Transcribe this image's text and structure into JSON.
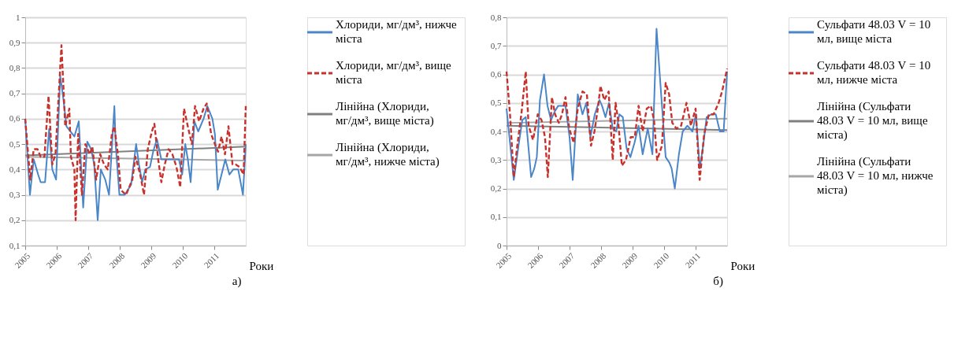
{
  "chart_data": [
    {
      "type": "line",
      "xlabel": "Роки",
      "xlim": [
        2005,
        2012
      ],
      "xticks": [
        2005,
        2006,
        2007,
        2008,
        2009,
        2010,
        2011
      ],
      "ylim": [
        0.1,
        1
      ],
      "yticks": [
        {
          "value": 0.1,
          "label": "0,1"
        },
        {
          "value": 0.2,
          "label": "0,2"
        },
        {
          "value": 0.3,
          "label": "0,3"
        },
        {
          "value": 0.4,
          "label": "0,4"
        },
        {
          "value": 0.5,
          "label": "0,5"
        },
        {
          "value": 0.6,
          "label": "0,6"
        },
        {
          "value": 0.7,
          "label": "0,7"
        },
        {
          "value": 0.8,
          "label": "0,8"
        },
        {
          "value": 0.9,
          "label": "0,9"
        },
        1
      ],
      "grid": "y",
      "legend": "right",
      "annotations": [
        "а)"
      ],
      "series": [
        {
          "name": "Хлориди, мг/дм³, нижче міста",
          "color": "#4a86c8",
          "line_style": "solid",
          "x": [
            2005.0,
            2005.15,
            2005.27,
            2005.41,
            2005.49,
            2005.63,
            2005.76,
            2005.86,
            2005.98,
            2006.11,
            2006.19,
            2006.31,
            2006.56,
            2006.7,
            2006.84,
            2006.97,
            2007.09,
            2007.19,
            2007.3,
            2007.4,
            2007.54,
            2007.66,
            2007.83,
            2007.87,
            2007.99,
            2008.16,
            2008.36,
            2008.52,
            2008.61,
            2008.71,
            2008.81,
            2008.96,
            2009.06,
            2009.18,
            2009.32,
            2009.47,
            2009.71,
            2009.88,
            2009.98,
            2010.08,
            2010.16,
            2010.25,
            2010.37,
            2010.49,
            2010.66,
            2010.78,
            2010.94,
            2011.02,
            2011.11,
            2011.23,
            2011.35,
            2011.48,
            2011.6,
            2011.76,
            2011.91,
            2012.0
          ],
          "values": [
            0.6,
            0.3,
            0.44,
            0.38,
            0.35,
            0.35,
            0.56,
            0.4,
            0.36,
            0.77,
            0.7,
            0.57,
            0.53,
            0.59,
            0.25,
            0.51,
            0.48,
            0.42,
            0.2,
            0.4,
            0.36,
            0.3,
            0.65,
            0.5,
            0.3,
            0.3,
            0.34,
            0.5,
            0.42,
            0.35,
            0.4,
            0.41,
            0.47,
            0.52,
            0.44,
            0.44,
            0.44,
            0.44,
            0.38,
            0.5,
            0.44,
            0.35,
            0.59,
            0.55,
            0.6,
            0.65,
            0.6,
            0.54,
            0.32,
            0.38,
            0.44,
            0.38,
            0.4,
            0.4,
            0.3,
            0.5
          ]
        },
        {
          "name": "Хлориди, мг/дм³, вище міста",
          "color": "#c8322d",
          "line_style": "dashed",
          "x": [
            2005.0,
            2005.16,
            2005.27,
            2005.39,
            2005.49,
            2005.61,
            2005.74,
            2005.86,
            2005.96,
            2006.15,
            2006.23,
            2006.27,
            2006.4,
            2006.45,
            2006.56,
            2006.6,
            2006.68,
            2006.8,
            2006.91,
            2007.05,
            2007.13,
            2007.25,
            2007.38,
            2007.5,
            2007.62,
            2007.75,
            2007.83,
            2007.95,
            2008.03,
            2008.2,
            2008.4,
            2008.5,
            2008.65,
            2008.77,
            2008.89,
            2009.02,
            2009.1,
            2009.22,
            2009.32,
            2009.43,
            2009.55,
            2009.67,
            2009.8,
            2009.92,
            2010.04,
            2010.16,
            2010.29,
            2010.39,
            2010.52,
            2010.66,
            2010.76,
            2010.9,
            2011.02,
            2011.12,
            2011.23,
            2011.34,
            2011.45,
            2011.58,
            2011.68,
            2011.8,
            2011.93,
            2012.0
          ],
          "values": [
            0.6,
            0.36,
            0.48,
            0.48,
            0.45,
            0.45,
            0.69,
            0.42,
            0.46,
            0.89,
            0.68,
            0.57,
            0.64,
            0.45,
            0.4,
            0.2,
            0.54,
            0.3,
            0.5,
            0.46,
            0.49,
            0.36,
            0.46,
            0.42,
            0.4,
            0.54,
            0.57,
            0.45,
            0.32,
            0.3,
            0.36,
            0.45,
            0.38,
            0.3,
            0.48,
            0.55,
            0.58,
            0.44,
            0.35,
            0.42,
            0.48,
            0.46,
            0.41,
            0.33,
            0.64,
            0.57,
            0.5,
            0.65,
            0.59,
            0.64,
            0.66,
            0.54,
            0.5,
            0.47,
            0.53,
            0.46,
            0.57,
            0.42,
            0.42,
            0.41,
            0.38,
            0.65
          ]
        },
        {
          "name": "Лінійна (Хлориди, мг/дм³, вище міста)",
          "type": "line",
          "color": "#808080",
          "line_style": "solid",
          "x": [
            2005,
            2012
          ],
          "values": [
            0.455,
            0.49
          ]
        },
        {
          "name": "Лінійна (Хлориди, мг/дм³, нижче міста)",
          "type": "line",
          "color": "#a6a6a6",
          "line_style": "solid",
          "x": [
            2005,
            2012
          ],
          "values": [
            0.45,
            0.435
          ]
        }
      ]
    },
    {
      "type": "line",
      "xlabel": "Роки",
      "xlim": [
        2005,
        2012
      ],
      "xticks": [
        2005,
        2006,
        2007,
        2008,
        2009,
        2010,
        2011
      ],
      "ylim": [
        0,
        0.8
      ],
      "yticks": [
        0,
        {
          "value": 0.1,
          "label": "0,1"
        },
        {
          "value": 0.2,
          "label": "0,2"
        },
        {
          "value": 0.3,
          "label": "0,3"
        },
        {
          "value": 0.4,
          "label": "0,4"
        },
        {
          "value": 0.5,
          "label": "0,5"
        },
        {
          "value": 0.6,
          "label": "0,6"
        },
        {
          "value": 0.7,
          "label": "0,7"
        },
        {
          "value": 0.8,
          "label": "0,8"
        }
      ],
      "grid": "y",
      "legend": "right",
      "annotations": [
        "б)"
      ],
      "series": [
        {
          "name": "Сульфати 48.03 V = 10 мл, вище міста",
          "color": "#4a86c8",
          "line_style": "solid",
          "x": [
            2005.0,
            2005.23,
            2005.38,
            2005.5,
            2005.61,
            2005.78,
            2005.88,
            2005.96,
            2006.06,
            2006.19,
            2006.3,
            2006.41,
            2006.53,
            2006.64,
            2006.87,
            2007.0,
            2007.1,
            2007.18,
            2007.26,
            2007.41,
            2007.53,
            2007.66,
            2007.8,
            2007.95,
            2008.03,
            2008.14,
            2008.25,
            2008.37,
            2008.48,
            2008.58,
            2008.69,
            2008.81,
            2008.93,
            2009.06,
            2009.19,
            2009.32,
            2009.48,
            2009.63,
            2009.76,
            2009.9,
            2010.05,
            2010.17,
            2010.24,
            2010.34,
            2010.47,
            2010.59,
            2010.74,
            2010.9,
            2011.01,
            2011.13,
            2011.24,
            2011.35,
            2011.5,
            2011.64,
            2011.77,
            2011.89,
            2012.0
          ],
          "values": [
            0.48,
            0.23,
            0.35,
            0.44,
            0.45,
            0.24,
            0.27,
            0.31,
            0.51,
            0.6,
            0.49,
            0.44,
            0.47,
            0.49,
            0.49,
            0.38,
            0.23,
            0.38,
            0.53,
            0.46,
            0.5,
            0.38,
            0.46,
            0.51,
            0.49,
            0.45,
            0.5,
            0.41,
            0.4,
            0.46,
            0.45,
            0.34,
            0.31,
            0.36,
            0.42,
            0.32,
            0.41,
            0.32,
            0.76,
            0.54,
            0.31,
            0.29,
            0.27,
            0.2,
            0.32,
            0.4,
            0.42,
            0.4,
            0.46,
            0.27,
            0.35,
            0.45,
            0.46,
            0.46,
            0.4,
            0.4,
            0.61
          ]
        },
        {
          "name": "Сульфати 48.03 V = 10 мл, нижче міста",
          "color": "#c8322d",
          "line_style": "dashed",
          "x": [
            2005.0,
            2005.11,
            2005.23,
            2005.34,
            2005.47,
            2005.61,
            2005.7,
            2005.84,
            2005.99,
            2006.11,
            2006.22,
            2006.31,
            2006.44,
            2006.54,
            2006.66,
            2006.76,
            2006.87,
            2006.99,
            2007.13,
            2007.26,
            2007.41,
            2007.55,
            2007.68,
            2007.79,
            2007.91,
            2007.98,
            2008.1,
            2008.24,
            2008.37,
            2008.46,
            2008.54,
            2008.66,
            2008.79,
            2008.94,
            2009.07,
            2009.19,
            2009.32,
            2009.45,
            2009.58,
            2009.68,
            2009.78,
            2009.93,
            2010.05,
            2010.16,
            2010.26,
            2010.39,
            2010.54,
            2010.71,
            2010.85,
            2011.0,
            2011.13,
            2011.27,
            2011.42,
            2011.57,
            2011.73,
            2011.84,
            2012.0
          ],
          "values": [
            0.61,
            0.46,
            0.24,
            0.35,
            0.46,
            0.61,
            0.42,
            0.37,
            0.46,
            0.44,
            0.38,
            0.24,
            0.52,
            0.46,
            0.43,
            0.46,
            0.52,
            0.41,
            0.36,
            0.48,
            0.54,
            0.53,
            0.35,
            0.4,
            0.49,
            0.56,
            0.51,
            0.54,
            0.3,
            0.5,
            0.44,
            0.28,
            0.3,
            0.38,
            0.38,
            0.49,
            0.4,
            0.48,
            0.49,
            0.44,
            0.3,
            0.35,
            0.57,
            0.53,
            0.43,
            0.41,
            0.42,
            0.5,
            0.42,
            0.48,
            0.23,
            0.39,
            0.46,
            0.46,
            0.5,
            0.54,
            0.62
          ]
        },
        {
          "name": "Лінійна (Сульфати 48.03 V = 10 мл, вище міста)",
          "type": "line",
          "color": "#808080",
          "line_style": "solid",
          "x": [
            2005,
            2012
          ],
          "values": [
            0.42,
            0.405
          ]
        },
        {
          "name": "Лінійна (Сульфати 48.03 V = 10 мл, нижче міста)",
          "type": "line",
          "color": "#a6a6a6",
          "line_style": "solid",
          "x": [
            2005,
            2012
          ],
          "values": [
            0.43,
            0.445
          ]
        }
      ]
    }
  ]
}
